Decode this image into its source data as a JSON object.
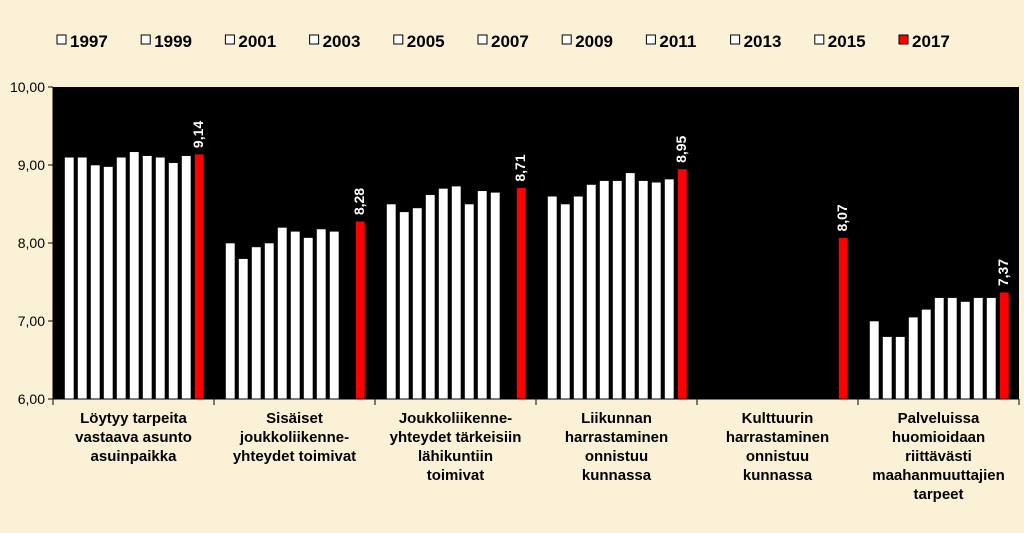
{
  "chart_data": {
    "type": "bar",
    "title": "",
    "xlabel": "",
    "ylabel": "",
    "ylim": [
      6,
      10
    ],
    "yticks": [
      "6,00",
      "7,00",
      "8,00",
      "9,00",
      "10,00"
    ],
    "grid": false,
    "legend_position": "top",
    "categories": [
      [
        "Löytyy tarpeita",
        "vastaava asunto",
        "asuinpaikka"
      ],
      [
        "Sisäiset",
        "joukkoliikenne-",
        "yhteydet toimivat"
      ],
      [
        "Joukkoliikenne-",
        "yhteydet  tärkeisiin",
        "lähikuntiin",
        "toimivat"
      ],
      [
        "Liikunnan",
        "harrastaminen",
        "onnistuu",
        "kunnassa"
      ],
      [
        "Kulttuurin",
        "harrastaminen",
        "onnistuu",
        "kunnassa"
      ],
      [
        "Palveluissa",
        "huomioidaan",
        "riittävästi",
        "maahanmuuttajien",
        "tarpeet"
      ]
    ],
    "series": [
      {
        "name": "1997",
        "color": "#ffffff",
        "values": [
          9.1,
          8.0,
          8.5,
          8.6,
          null,
          7.0
        ]
      },
      {
        "name": "1999",
        "color": "#ffffff",
        "values": [
          9.1,
          7.8,
          8.4,
          8.5,
          null,
          6.8
        ]
      },
      {
        "name": "2001",
        "color": "#ffffff",
        "values": [
          9.0,
          7.95,
          8.45,
          8.6,
          null,
          6.8
        ]
      },
      {
        "name": "2003",
        "color": "#ffffff",
        "values": [
          8.98,
          8.0,
          8.62,
          8.75,
          null,
          7.05
        ]
      },
      {
        "name": "2005",
        "color": "#ffffff",
        "values": [
          9.1,
          8.2,
          8.7,
          8.8,
          null,
          7.15
        ]
      },
      {
        "name": "2007",
        "color": "#ffffff",
        "values": [
          9.17,
          8.15,
          8.73,
          8.8,
          null,
          7.3
        ]
      },
      {
        "name": "2009",
        "color": "#ffffff",
        "values": [
          9.12,
          8.07,
          8.5,
          8.9,
          null,
          7.3
        ]
      },
      {
        "name": "2011",
        "color": "#ffffff",
        "values": [
          9.1,
          8.18,
          8.67,
          8.8,
          null,
          7.25
        ]
      },
      {
        "name": "2013",
        "color": "#ffffff",
        "values": [
          9.03,
          8.15,
          8.65,
          8.78,
          null,
          7.3
        ]
      },
      {
        "name": "2015",
        "color": "#ffffff",
        "values": [
          9.12,
          null,
          null,
          8.82,
          null,
          7.3
        ]
      },
      {
        "name": "2017",
        "color": "#ff0000",
        "values": [
          9.14,
          8.28,
          8.71,
          8.95,
          8.07,
          7.37
        ],
        "data_labels": [
          "9,14",
          "8,28",
          "8,71",
          "8,95",
          "8,07",
          "7,37"
        ]
      }
    ]
  },
  "colors": {
    "background": "#fbf1d6",
    "plot_area": "#000000",
    "highlight_bar": "#ff0000",
    "bar": "#ffffff"
  }
}
